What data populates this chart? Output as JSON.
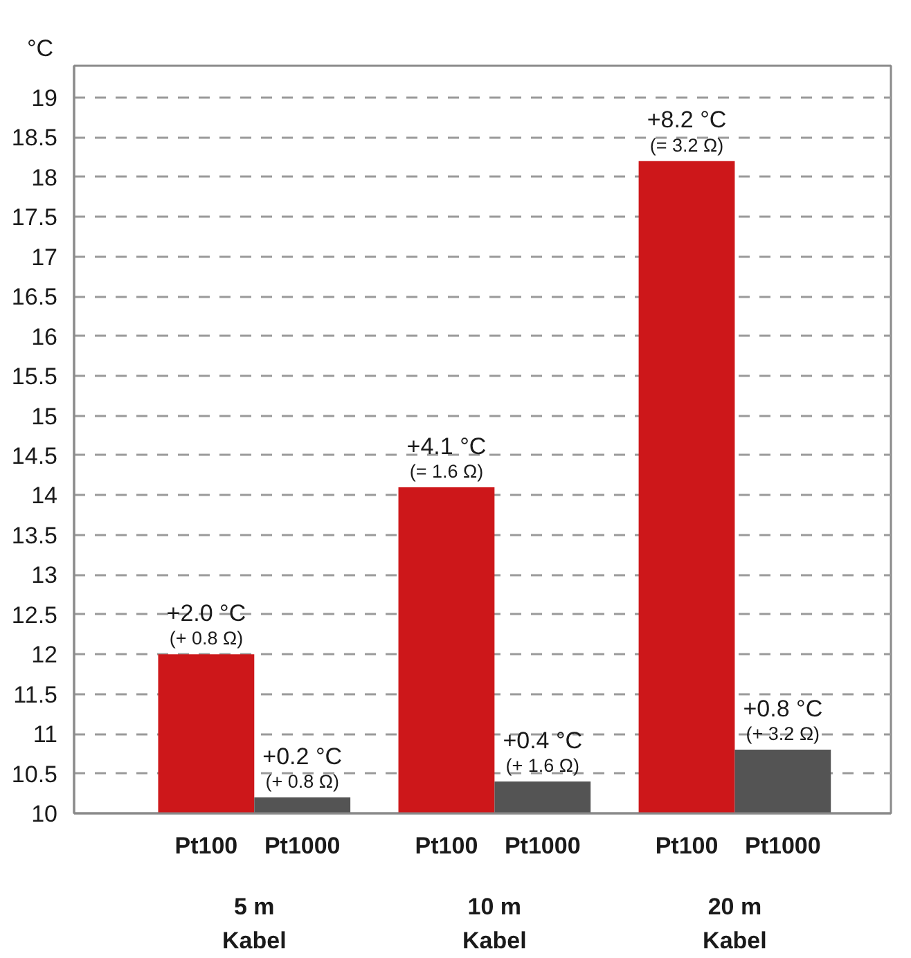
{
  "chart_data": {
    "type": "bar",
    "ylabel": "°C",
    "categories": [
      "5 m\nKabel",
      "10 m\nKabel",
      "20 m\nKabel"
    ],
    "series": [
      {
        "name": "Pt100",
        "color": "#cd171a",
        "base": [
          10,
          10,
          10
        ],
        "values": [
          2.0,
          4.1,
          8.2
        ],
        "value_labels": [
          "+2.0 °C\n(+ 0.8 Ω)",
          "+4.1 °C\n(= 1.6 Ω)",
          "+8.2 °C\n(= 3.2 Ω)"
        ]
      },
      {
        "name": "Pt1000",
        "color": "#545454",
        "base": [
          10,
          10,
          10
        ],
        "values": [
          0.2,
          0.4,
          0.8
        ],
        "value_labels": [
          "+0.2 °C\n(+ 0.8 Ω)",
          "+0.4 °C\n(+ 1.6 Ω)",
          "+0.8 °C\n(+ 3.2 Ω)"
        ]
      }
    ],
    "ylim": [
      10,
      19.4
    ],
    "yticks": [
      10,
      10.5,
      11,
      11.5,
      12,
      12.5,
      13,
      13.5,
      14,
      14.5,
      15,
      15.5,
      16,
      16.5,
      17,
      17.5,
      18,
      18.5,
      19
    ],
    "grid": "y"
  }
}
